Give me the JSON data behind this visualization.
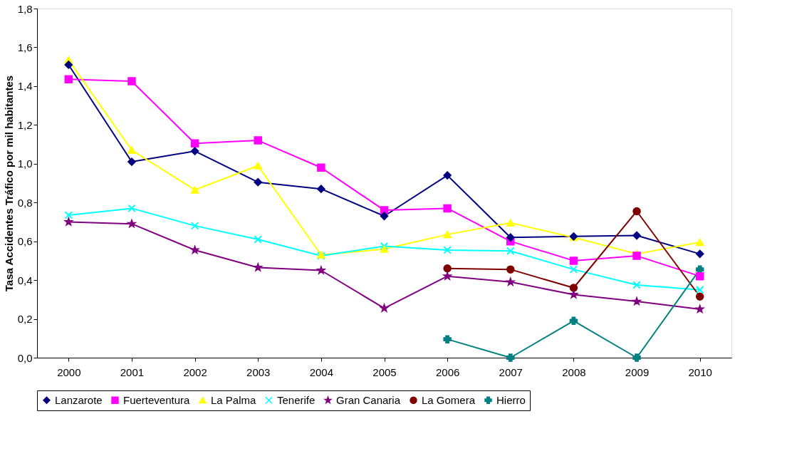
{
  "chart_data": {
    "type": "line",
    "ylabel": "Tasa Accidentes Tráfico por mil habitantes",
    "categories": [
      "2000",
      "2001",
      "2002",
      "2003",
      "2004",
      "2005",
      "2006",
      "2007",
      "2008",
      "2009",
      "2010"
    ],
    "ylim": [
      0,
      1.8
    ],
    "yticks": [
      {
        "value": 0,
        "label": "0,0"
      },
      {
        "value": 0.2,
        "label": "0,2"
      },
      {
        "value": 0.4,
        "label": "0,4"
      },
      {
        "value": 0.6,
        "label": "0,6"
      },
      {
        "value": 0.8,
        "label": "0,8"
      },
      {
        "value": 1.0,
        "label": "1,0"
      },
      {
        "value": 1.2,
        "label": "1,2"
      },
      {
        "value": 1.4,
        "label": "1,4"
      },
      {
        "value": 1.6,
        "label": "1,6"
      },
      {
        "value": 1.8,
        "label": "1,8"
      }
    ],
    "grid": false,
    "legend": "bottom",
    "line_style": "solid",
    "series": [
      {
        "name": "Lanzarote",
        "color": "#000080",
        "marker": "diamond",
        "values": [
          1.51,
          1.01,
          1.065,
          0.905,
          0.87,
          0.73,
          0.94,
          0.62,
          0.625,
          0.63,
          0.535
        ]
      },
      {
        "name": "Fuerteventura",
        "color": "#ff00ff",
        "marker": "square",
        "values": [
          1.435,
          1.425,
          1.105,
          1.12,
          0.98,
          0.76,
          0.77,
          0.6,
          0.5,
          0.525,
          0.42
        ]
      },
      {
        "name": "La Palma",
        "color": "#ffff00",
        "marker": "triangle",
        "values": [
          1.535,
          1.07,
          0.865,
          0.99,
          0.53,
          0.56,
          0.635,
          0.695,
          0.62,
          0.535,
          0.595
        ]
      },
      {
        "name": "Tenerife",
        "color": "#00ffff",
        "marker": "x",
        "values": [
          0.735,
          0.77,
          0.68,
          0.61,
          0.525,
          0.575,
          0.555,
          0.55,
          0.455,
          0.375,
          0.35
        ]
      },
      {
        "name": "Gran Canaria",
        "color": "#800080",
        "marker": "star",
        "values": [
          0.7,
          0.69,
          0.555,
          0.465,
          0.45,
          0.255,
          0.42,
          0.39,
          0.325,
          0.29,
          0.25
        ]
      },
      {
        "name": "La Gomera",
        "color": "#800000",
        "marker": "circle",
        "values": [
          null,
          null,
          null,
          null,
          null,
          null,
          0.46,
          0.455,
          0.36,
          0.755,
          0.315
        ]
      },
      {
        "name": "Hierro",
        "color": "#008080",
        "marker": "cross",
        "values": [
          null,
          null,
          null,
          null,
          null,
          null,
          0.095,
          0.0,
          0.19,
          0.0,
          0.455
        ]
      }
    ]
  }
}
